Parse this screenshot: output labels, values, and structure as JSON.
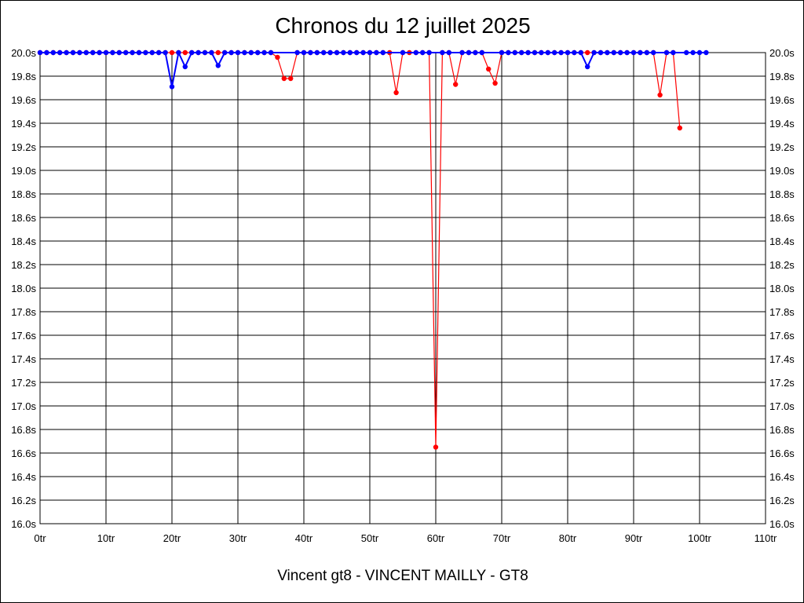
{
  "chart_data": {
    "type": "line",
    "title": "Chronos du 12 juillet 2025",
    "subtitle": "Vincent gt8 - VINCENT MAILLY - GT8",
    "xlim": [
      0,
      110
    ],
    "ylim": [
      16.0,
      20.0
    ],
    "x_ticks": [
      0,
      10,
      20,
      30,
      40,
      50,
      60,
      70,
      80,
      90,
      100,
      110
    ],
    "x_tick_labels": [
      "0tr",
      "10tr",
      "20tr",
      "30tr",
      "40tr",
      "50tr",
      "60tr",
      "70tr",
      "80tr",
      "90tr",
      "100tr",
      "110tr"
    ],
    "y_ticks": [
      16.0,
      16.2,
      16.4,
      16.6,
      16.8,
      17.0,
      17.2,
      17.4,
      17.6,
      17.8,
      18.0,
      18.2,
      18.4,
      18.6,
      18.8,
      19.0,
      19.2,
      19.4,
      19.6,
      19.8,
      20.0
    ],
    "y_tick_labels": [
      "16.0s",
      "16.2s",
      "16.4s",
      "16.6s",
      "16.8s",
      "17.0s",
      "17.2s",
      "17.4s",
      "17.6s",
      "17.8s",
      "18.0s",
      "18.2s",
      "18.4s",
      "18.6s",
      "18.8s",
      "19.0s",
      "19.2s",
      "19.4s",
      "19.6s",
      "19.8s",
      "20.0s"
    ],
    "grid": true,
    "series": [
      {
        "color": "#ff0000",
        "x": [
          0,
          1,
          2,
          3,
          4,
          5,
          6,
          7,
          8,
          9,
          10,
          11,
          12,
          13,
          14,
          15,
          16,
          17,
          18,
          19,
          20,
          21,
          22,
          23,
          24,
          25,
          26,
          27,
          28,
          29,
          30,
          31,
          32,
          33,
          34,
          35,
          36,
          37,
          38,
          39,
          40,
          41,
          42,
          43,
          44,
          45,
          46,
          47,
          48,
          49,
          50,
          51,
          52,
          53,
          54,
          55,
          56,
          57,
          58,
          59,
          60,
          61,
          62,
          63,
          64,
          65,
          66,
          67,
          68,
          69,
          70,
          71,
          72,
          73,
          74,
          75,
          76,
          77,
          78,
          79,
          80,
          81,
          82,
          83,
          84,
          85,
          86,
          87,
          88,
          89,
          90,
          91,
          92,
          93,
          94,
          95,
          96,
          97
        ],
        "y": [
          20.0,
          20.0,
          20.0,
          20.0,
          20.0,
          20.0,
          20.0,
          20.0,
          20.0,
          20.0,
          20.0,
          20.0,
          20.0,
          20.0,
          20.0,
          20.0,
          20.0,
          20.0,
          20.0,
          20.0,
          20.0,
          20.0,
          20.0,
          20.0,
          20.0,
          20.0,
          20.0,
          20.0,
          20.0,
          20.0,
          20.0,
          20.0,
          20.0,
          20.0,
          20.0,
          20.0,
          19.96,
          19.78,
          19.78,
          20.0,
          20.0,
          20.0,
          20.0,
          20.0,
          20.0,
          20.0,
          20.0,
          20.0,
          20.0,
          20.0,
          20.0,
          20.0,
          20.0,
          20.0,
          19.66,
          20.0,
          20.0,
          20.0,
          20.0,
          20.0,
          16.65,
          20.0,
          20.0,
          19.73,
          20.0,
          20.0,
          20.0,
          20.0,
          19.86,
          19.74,
          20.0,
          20.0,
          20.0,
          20.0,
          20.0,
          20.0,
          20.0,
          20.0,
          20.0,
          20.0,
          20.0,
          20.0,
          20.0,
          20.0,
          20.0,
          20.0,
          20.0,
          20.0,
          20.0,
          20.0,
          20.0,
          20.0,
          20.0,
          20.0,
          19.64,
          20.0,
          20.0,
          19.36
        ]
      },
      {
        "color": "#0000ff",
        "x": [
          0,
          1,
          2,
          3,
          4,
          5,
          6,
          7,
          8,
          9,
          10,
          11,
          12,
          13,
          14,
          15,
          16,
          17,
          18,
          19,
          20,
          21,
          22,
          23,
          24,
          25,
          26,
          27,
          28,
          29,
          30,
          31,
          32,
          33,
          34,
          35,
          36,
          37,
          38,
          39,
          40,
          41,
          42,
          43,
          44,
          45,
          46,
          47,
          48,
          49,
          50,
          51,
          52,
          53,
          54,
          55,
          56,
          57,
          58,
          59,
          60,
          61,
          62,
          63,
          64,
          65,
          66,
          67,
          68,
          69,
          70,
          71,
          72,
          73,
          74,
          75,
          76,
          77,
          78,
          79,
          80,
          81,
          82,
          83,
          84,
          85,
          86,
          87,
          88,
          89,
          90,
          91,
          92,
          93,
          94,
          95,
          96,
          97,
          98,
          99,
          100,
          101
        ],
        "y": [
          20.0,
          20.0,
          20.0,
          20.0,
          20.0,
          20.0,
          20.0,
          20.0,
          20.0,
          20.0,
          20.0,
          20.0,
          20.0,
          20.0,
          20.0,
          20.0,
          20.0,
          20.0,
          20.0,
          20.0,
          19.71,
          20.0,
          19.88,
          20.0,
          20.0,
          20.0,
          20.0,
          19.89,
          20.0,
          20.0,
          20.0,
          20.0,
          20.0,
          20.0,
          20.0,
          20.0,
          20.0,
          20.0,
          20.0,
          20.0,
          20.0,
          20.0,
          20.0,
          20.0,
          20.0,
          20.0,
          20.0,
          20.0,
          20.0,
          20.0,
          20.0,
          20.0,
          20.0,
          20.0,
          20.0,
          20.0,
          20.0,
          20.0,
          20.0,
          20.0,
          20.0,
          20.0,
          20.0,
          20.0,
          20.0,
          20.0,
          20.0,
          20.0,
          20.0,
          20.0,
          20.0,
          20.0,
          20.0,
          20.0,
          20.0,
          20.0,
          20.0,
          20.0,
          20.0,
          20.0,
          20.0,
          20.0,
          20.0,
          19.88,
          20.0,
          20.0,
          20.0,
          20.0,
          20.0,
          20.0,
          20.0,
          20.0,
          20.0,
          20.0,
          20.0,
          20.0,
          20.0,
          20.0,
          20.0,
          20.0,
          20.0,
          20.0
        ],
        "marker_x": [
          0,
          1,
          2,
          3,
          4,
          5,
          6,
          7,
          8,
          9,
          10,
          11,
          12,
          13,
          14,
          15,
          16,
          17,
          18,
          19,
          20,
          21,
          22,
          23,
          24,
          25,
          26,
          27,
          28,
          29,
          30,
          31,
          32,
          33,
          34,
          35,
          39,
          40,
          41,
          42,
          43,
          44,
          45,
          46,
          47,
          48,
          49,
          50,
          51,
          52,
          55,
          57,
          58,
          59,
          61,
          62,
          64,
          65,
          66,
          67,
          70,
          71,
          72,
          73,
          74,
          75,
          76,
          77,
          78,
          79,
          80,
          81,
          82,
          83,
          84,
          85,
          86,
          87,
          88,
          89,
          90,
          91,
          92,
          93,
          95,
          96,
          98,
          99,
          100,
          101
        ]
      }
    ]
  }
}
